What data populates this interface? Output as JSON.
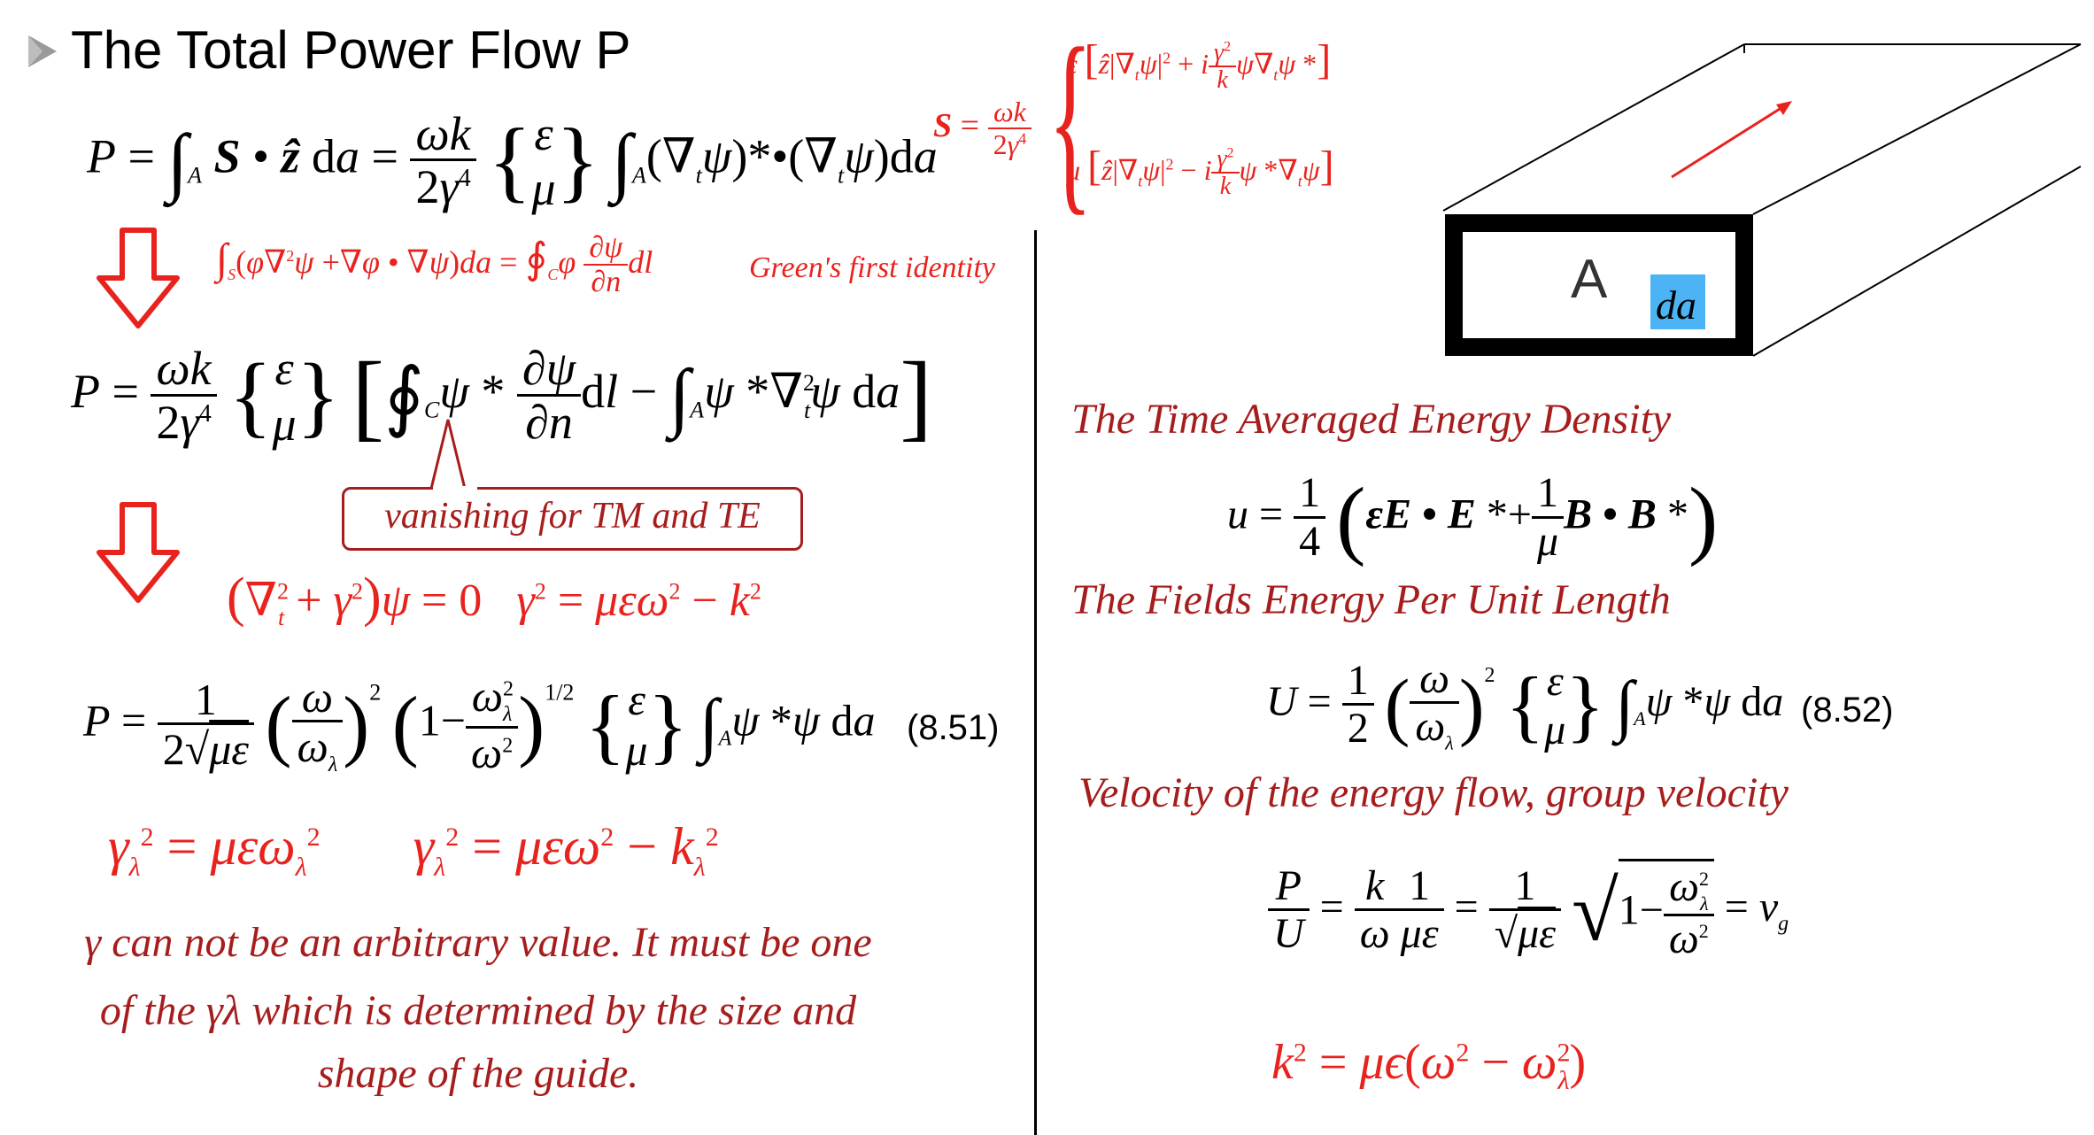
{
  "title": "The Total Power Flow P",
  "equations": {
    "p_integral": "P = ∫A S • ẑ da = (ωk / 2γ⁴) {ε, μ} ∫A (∇tψ)*•(∇tψ) da",
    "s_vector": "S = (ωk / 2γ⁴) { ε[ẑ|∇tψ|² + i(γ²/k)ψ∇tψ*] ; μ[ẑ|∇tψ|² − i(γ²/k)ψ*∇tψ] }",
    "green_identity": "∫S(φ∇²ψ + ∇φ•∇ψ)da = ∮C φ ∂ψ/∂n dl",
    "green_label": "Green's first identity",
    "p_green": "P = (ωk / 2γ⁴) {ε, μ} [ ∮C ψ* ∂ψ/∂n dl − ∫A ψ*∇t²ψ da ]",
    "callout": "vanishing for TM and TE",
    "helmholtz": "(∇t² + γ²)ψ = 0    γ² = μεω² − k²",
    "p_final": "P = 1/(2√με) (ω/ωλ)² (1 − ωλ²/ω²)^(1/2) {ε, μ} ∫A ψ*ψ da",
    "p_final_number": "(8.51)",
    "gamma_lambda": "γλ² = μεωλ²      γλ² = μεω² − kλ²",
    "time_avg_label": "The Time Averaged Energy Density",
    "u_density": "u = 1/4 ( εE • E* + (1/μ) B • B* )",
    "fields_energy_label": "The Fields Energy Per Unit Length",
    "u_length": "U = 1/2 (ω/ωλ)² {ε, μ} ∫A ψ*ψ da",
    "u_length_number": "(8.52)",
    "velocity_label": "Velocity of the energy flow, group velocity",
    "group_velocity": "P/U = (k/ω)(1/με) = (1/√με) √(1 − ωλ²/ω²) = vg",
    "k_squared": "k² = με(ω² − ωλ²)"
  },
  "diagram": {
    "area_label": "A",
    "da_label": "da",
    "da_color": "#4cb4f5",
    "arrow_color": "#e8231e"
  },
  "paragraph": [
    "γ can not be an arbitrary value. It must be one",
    "of the γλ which is determined by the size and",
    "shape of the guide."
  ],
  "colors": {
    "accent_red": "#e8231e",
    "dark_red": "#a61d1d"
  }
}
